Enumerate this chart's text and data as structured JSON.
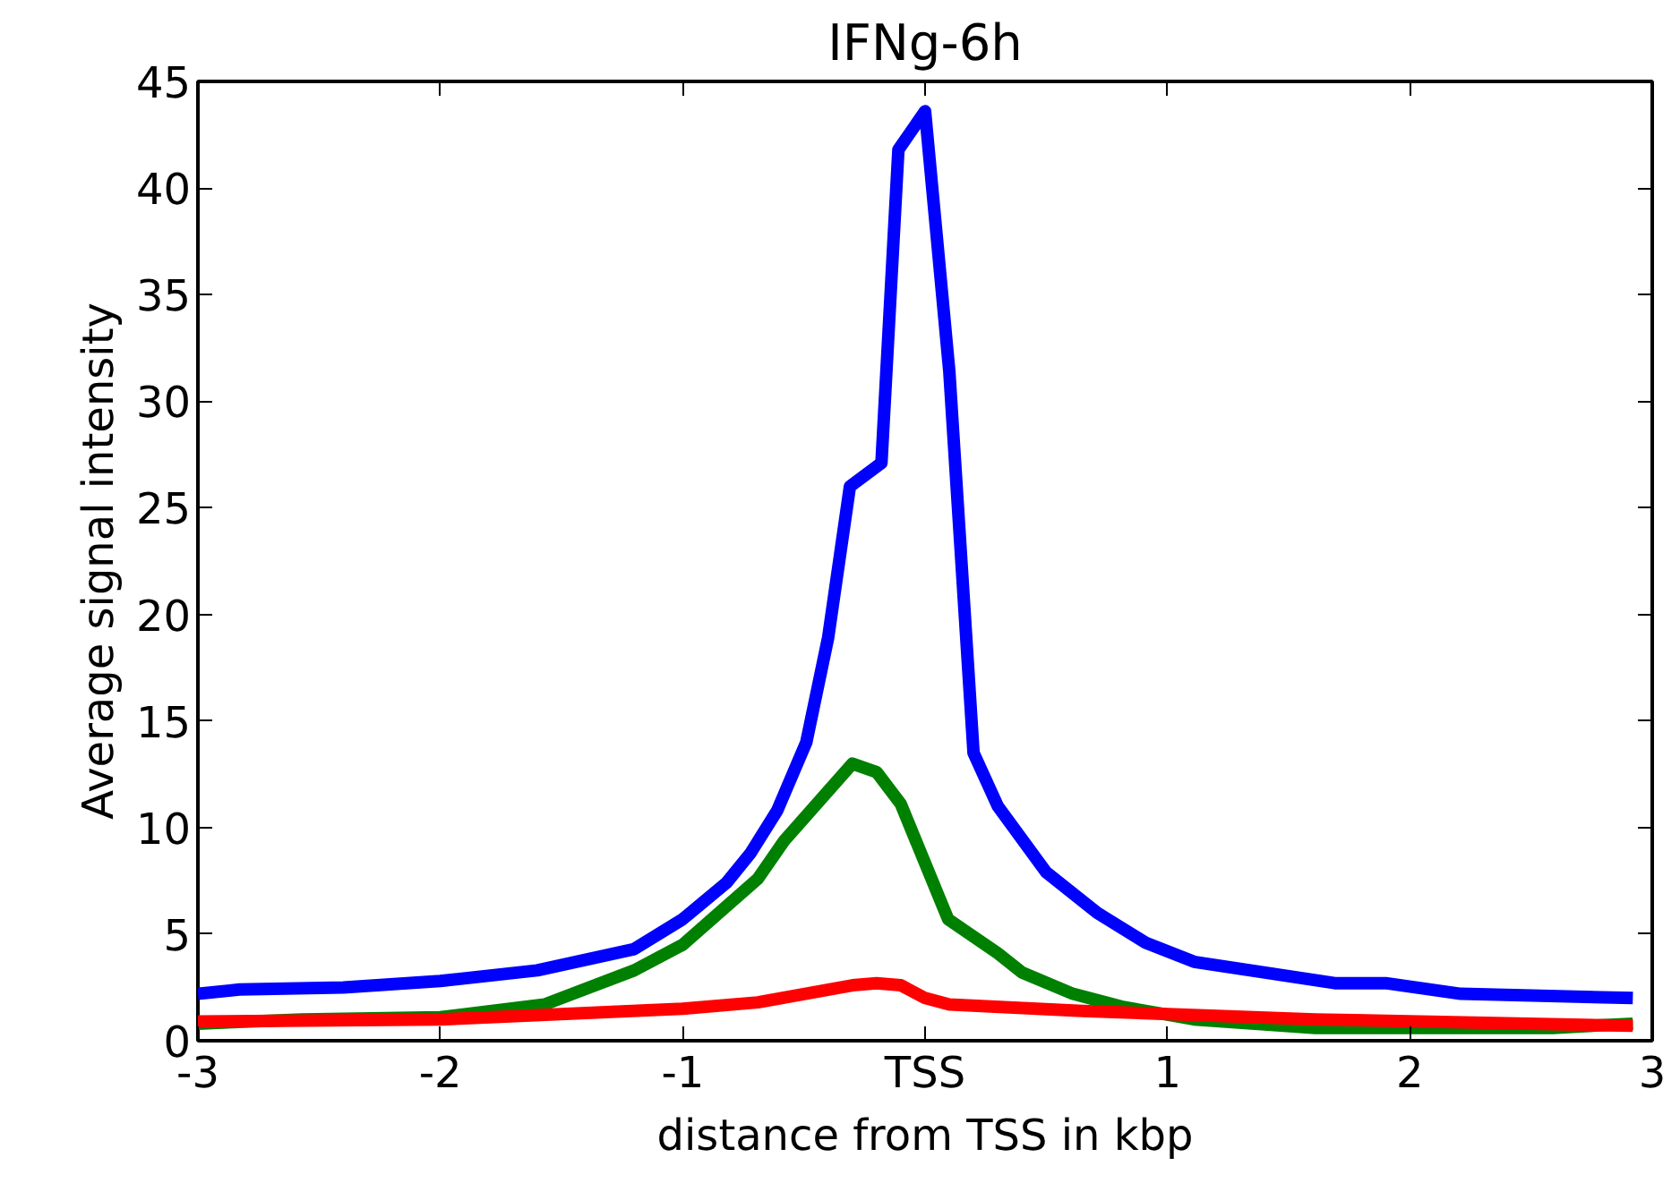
{
  "chart_data": {
    "type": "line",
    "title": "IFNg-6h",
    "xlabel": "distance from TSS in kbp",
    "ylabel": "Average signal intensity",
    "xlim": [
      -3,
      3
    ],
    "ylim": [
      0,
      45
    ],
    "xticks": [
      -3,
      -2,
      -1,
      {
        "value": 0,
        "label": "TSS"
      },
      1,
      2,
      3
    ],
    "yticks": [
      0,
      5,
      10,
      15,
      20,
      25,
      30,
      35,
      40,
      45
    ],
    "grid": false,
    "marker": "none",
    "line_style": "solid",
    "series": [
      {
        "color": "#0000ff",
        "x": [
          -3,
          -2.83,
          -2.4,
          -2.0,
          -1.6,
          -1.2,
          -1.0,
          -0.82,
          -0.72,
          -0.61,
          -0.49,
          -0.4,
          -0.31,
          -0.18,
          -0.11,
          0.0,
          0.1,
          0.2,
          0.3,
          0.5,
          0.71,
          0.91,
          1.11,
          1.69,
          1.9,
          2.21,
          2.92
        ],
        "values": [
          2.2,
          2.4,
          2.5,
          2.8,
          3.3,
          4.3,
          5.7,
          7.4,
          8.8,
          10.8,
          14.0,
          18.9,
          26.0,
          27.1,
          41.8,
          43.6,
          31.4,
          13.5,
          11.0,
          7.9,
          6.0,
          4.6,
          3.7,
          2.7,
          2.7,
          2.2,
          2.0
        ]
      },
      {
        "color": "#008000",
        "x": [
          -3,
          -2.57,
          -2.0,
          -1.57,
          -1.2,
          -1.0,
          -0.69,
          -0.58,
          -0.3,
          -0.2,
          -0.1,
          0.095,
          0.3,
          0.4,
          0.61,
          0.81,
          1.11,
          1.61,
          2.59,
          2.92
        ],
        "values": [
          0.8,
          1.0,
          1.1,
          1.7,
          3.3,
          4.5,
          7.6,
          9.4,
          13.0,
          12.6,
          11.1,
          5.7,
          4.1,
          3.2,
          2.2,
          1.6,
          1.0,
          0.6,
          0.6,
          0.8
        ]
      },
      {
        "color": "#ff0000",
        "x": [
          -3,
          -2.0,
          -1.0,
          -0.69,
          -0.3,
          -0.2,
          -0.1,
          0.0,
          0.1,
          0.65,
          1.61,
          2.92
        ],
        "values": [
          0.9,
          1.0,
          1.5,
          1.8,
          2.6,
          2.7,
          2.6,
          2.0,
          1.7,
          1.4,
          1.0,
          0.7
        ]
      }
    ]
  }
}
